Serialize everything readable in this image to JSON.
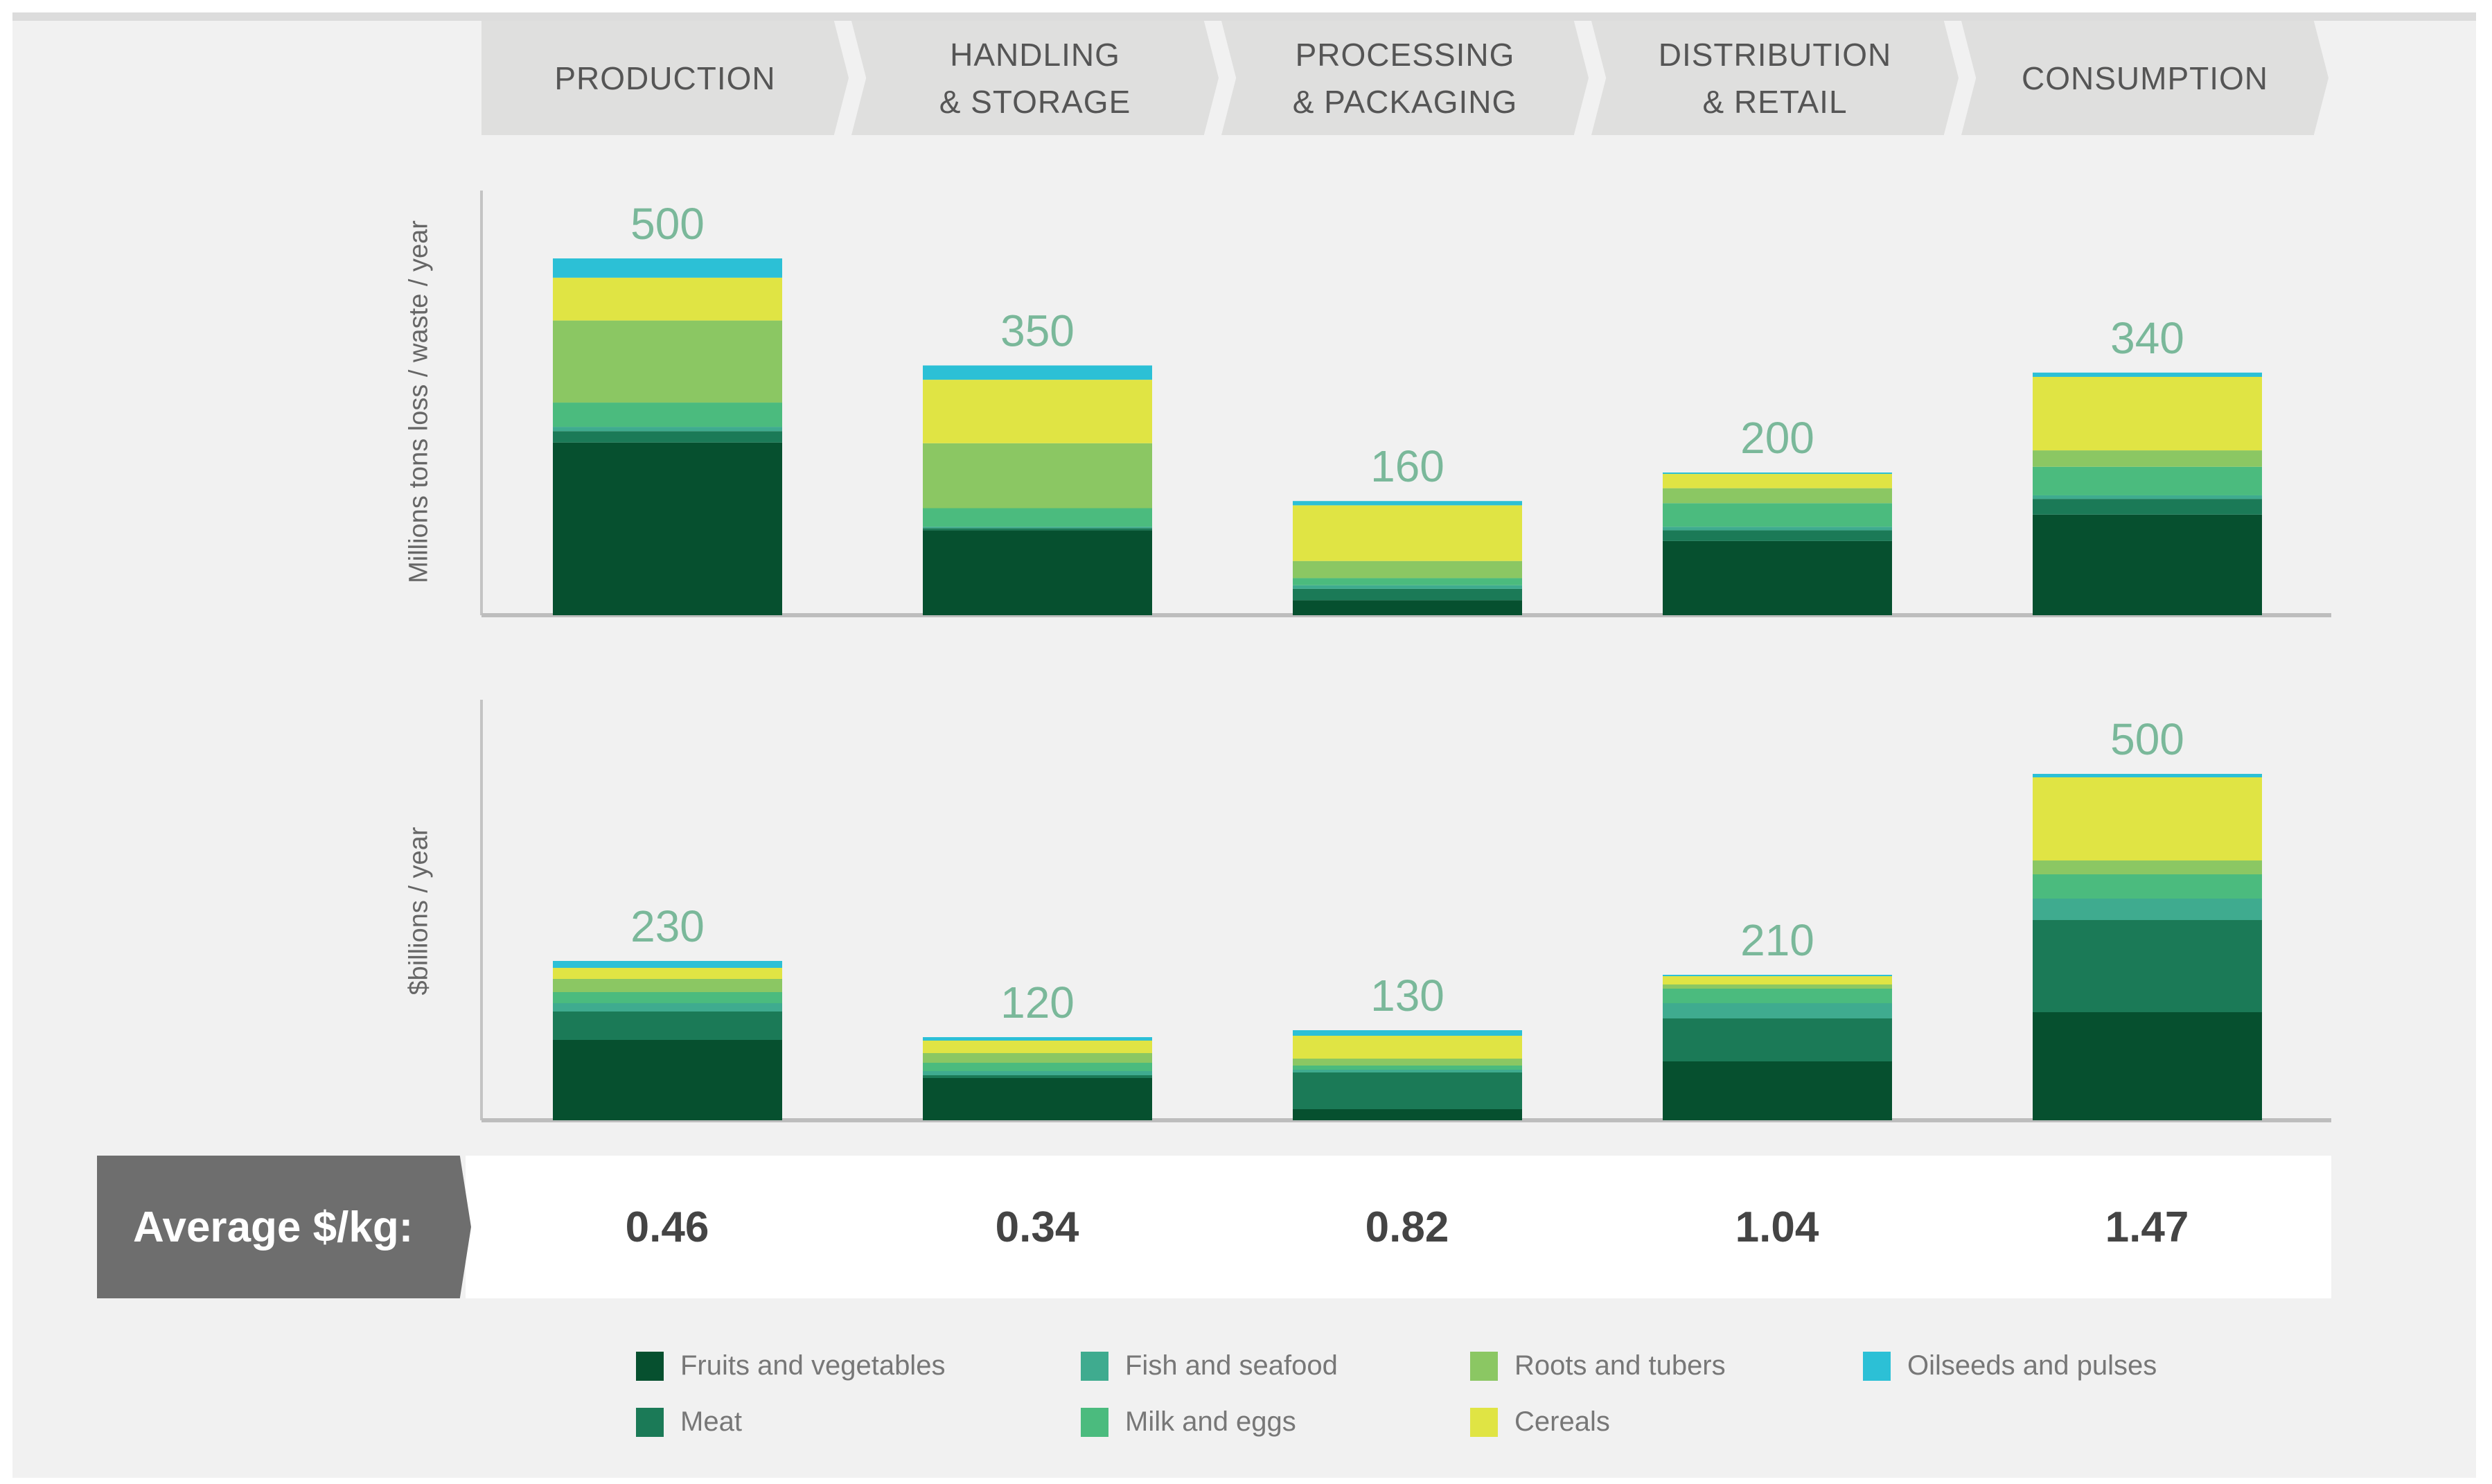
{
  "stages": [
    "PRODUCTION",
    "HANDLING\n& STORAGE",
    "PROCESSING\n& PACKAGING",
    "DISTRIBUTION\n& RETAIL",
    "CONSUMPTION"
  ],
  "average_label": "Average $/kg:",
  "average_values": [
    "0.46",
    "0.34",
    "0.82",
    "1.04",
    "1.47"
  ],
  "colors": {
    "Fruits and vegetables": "#06502f",
    "Meat": "#1b7a57",
    "Fish and seafood": "#3fab8f",
    "Milk and eggs": "#4bbb7e",
    "Roots and tubers": "#8bc763",
    "Cereals": "#e0e444",
    "Oilseeds and pulses": "#2cc0d6"
  },
  "legend": [
    [
      "Fruits and vegetables",
      "Fish and seafood",
      "Roots and tubers",
      "Oilseeds and pulses"
    ],
    [
      "Meat",
      "Milk and eggs",
      "Cereals"
    ]
  ],
  "chart_data": [
    {
      "type": "bar",
      "stacked": true,
      "ylabel": "Millions tons loss / waste / year",
      "categories": [
        "Production",
        "Handling & Storage",
        "Processing & Packaging",
        "Distribution & Retail",
        "Consumption"
      ],
      "totals": [
        "500",
        "350",
        "160",
        "200",
        "340"
      ],
      "ylim": [
        0,
        500
      ],
      "series": [
        {
          "name": "Fruits and vegetables",
          "values": [
            242,
            119,
            21,
            104,
            141
          ]
        },
        {
          "name": "Meat",
          "values": [
            16,
            3,
            16,
            15,
            22
          ]
        },
        {
          "name": "Fish and seafood",
          "values": [
            6,
            2,
            5,
            5,
            5
          ]
        },
        {
          "name": "Milk and eggs",
          "values": [
            34,
            26,
            10,
            33,
            40
          ]
        },
        {
          "name": "Roots and tubers",
          "values": [
            115,
            91,
            24,
            21,
            23
          ]
        },
        {
          "name": "Cereals",
          "values": [
            60,
            89,
            78,
            20,
            103
          ]
        },
        {
          "name": "Oilseeds and pulses",
          "values": [
            27,
            20,
            6,
            2,
            6
          ]
        }
      ]
    },
    {
      "type": "bar",
      "stacked": true,
      "ylabel": "$billions / year",
      "categories": [
        "Production",
        "Handling & Storage",
        "Processing & Packaging",
        "Distribution & Retail",
        "Consumption"
      ],
      "totals": [
        "230",
        "120",
        "130",
        "210",
        "500"
      ],
      "ylim": [
        0,
        500
      ],
      "series": [
        {
          "name": "Fruits and vegetables",
          "values": [
            116,
            61,
            16,
            85,
            156
          ]
        },
        {
          "name": "Meat",
          "values": [
            41,
            4,
            53,
            62,
            133
          ]
        },
        {
          "name": "Fish and seafood",
          "values": [
            12,
            6,
            4,
            22,
            31
          ]
        },
        {
          "name": "Milk and eggs",
          "values": [
            16,
            12,
            6,
            21,
            35
          ]
        },
        {
          "name": "Roots and tubers",
          "values": [
            19,
            14,
            10,
            6,
            20
          ]
        },
        {
          "name": "Cereals",
          "values": [
            16,
            18,
            33,
            12,
            120
          ]
        },
        {
          "name": "Oilseeds and pulses",
          "values": [
            10,
            5,
            8,
            2,
            5
          ]
        }
      ]
    }
  ]
}
